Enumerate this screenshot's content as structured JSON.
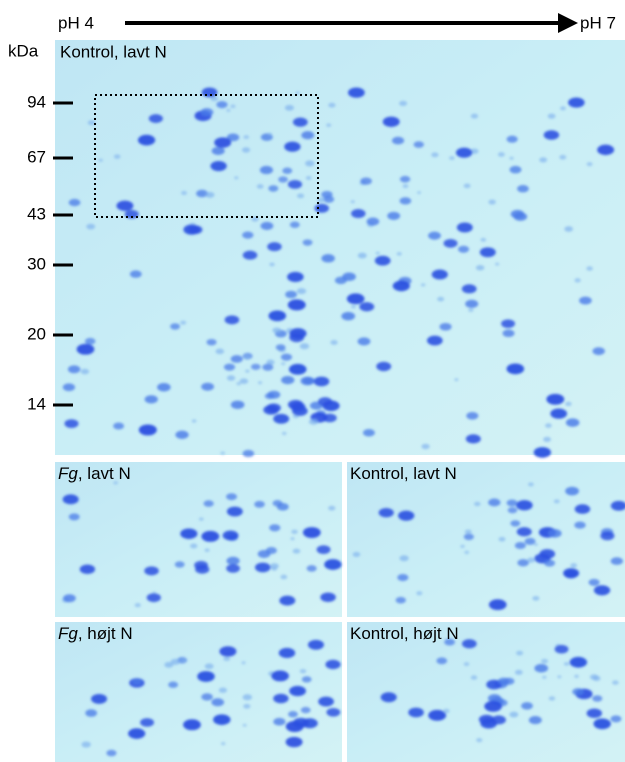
{
  "header": {
    "ph_start": "pH 4",
    "ph_end": "pH 7",
    "unit": "kDa"
  },
  "main_gel": {
    "label": "Kontrol, lavt N",
    "markers": [
      "94",
      "67",
      "43",
      "30",
      "20",
      "14"
    ]
  },
  "panels": [
    {
      "italic": "Fg",
      "text": ", lavt N"
    },
    {
      "italic": "",
      "text": "Kontrol, lavt N"
    },
    {
      "italic": "Fg",
      "text": ", højt N"
    },
    {
      "italic": "",
      "text": "Kontrol, højt N"
    }
  ]
}
